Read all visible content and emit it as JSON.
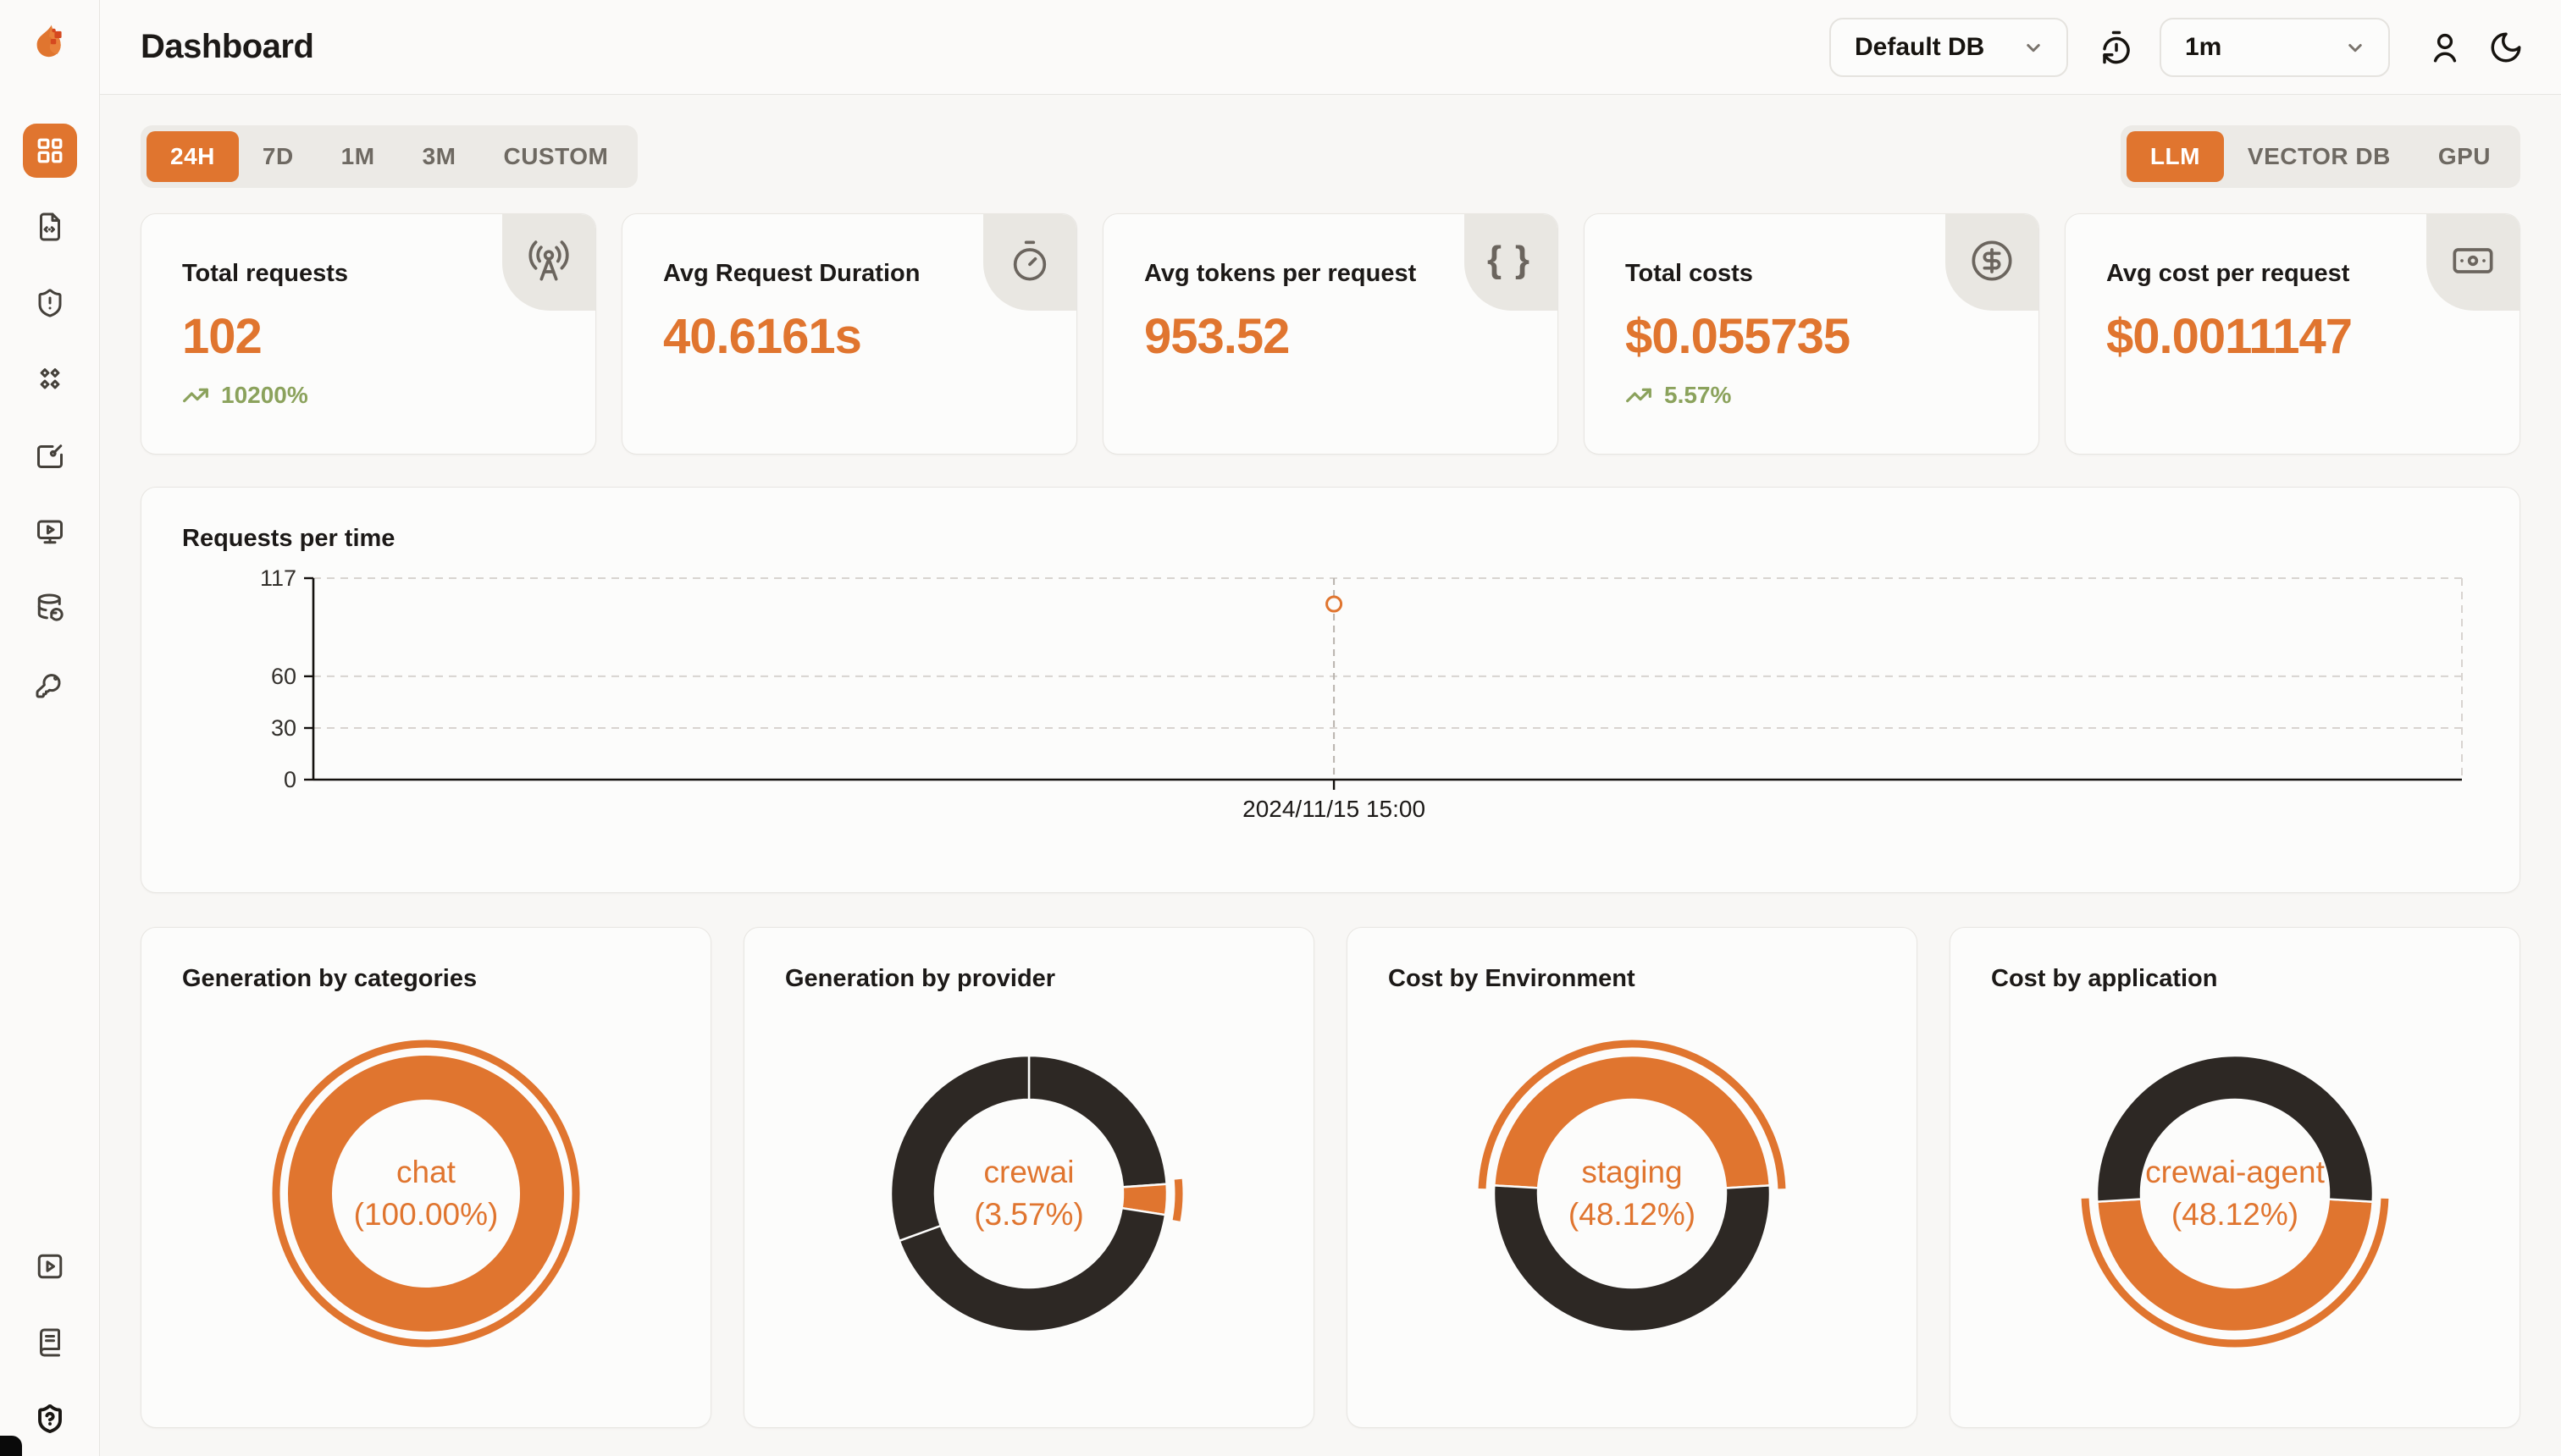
{
  "app": {
    "title": "Dashboard"
  },
  "colors": {
    "accent": "#e0752f",
    "dark": "#2d2824",
    "green": "#8ba25c"
  },
  "header": {
    "db_select": {
      "value": "Default DB"
    },
    "interval_select": {
      "value": "1m"
    }
  },
  "time_range_tabs": [
    "24H",
    "7D",
    "1M",
    "3M",
    "CUSTOM"
  ],
  "time_range_active": "24H",
  "resource_tabs": [
    "LLM",
    "VECTOR DB",
    "GPU"
  ],
  "resource_active": "LLM",
  "stat_cards": [
    {
      "title": "Total requests",
      "value": "102",
      "trend": "10200%",
      "icon": "radio-tower"
    },
    {
      "title": "Avg Request Duration",
      "value": "40.6161s",
      "trend": "",
      "icon": "timer"
    },
    {
      "title": "Avg tokens per request",
      "value": "953.52",
      "trend": "",
      "icon": "braces"
    },
    {
      "title": "Total costs",
      "value": "$0.055735",
      "trend": "5.57%",
      "icon": "circle-dollar-sign"
    },
    {
      "title": "Avg cost per request",
      "value": "$0.0011147",
      "trend": "",
      "icon": "banknote"
    }
  ],
  "chart_data": [
    {
      "type": "line",
      "title": "Requests per time",
      "x": [
        "2024/11/15 15:00"
      ],
      "values": [
        102
      ],
      "yticks": [
        117,
        60,
        30,
        0
      ],
      "ylim": [
        0,
        117
      ],
      "grid": "horizontal-dashed",
      "legend": false,
      "color": "#e0752f"
    },
    {
      "type": "donut",
      "title": "Generation by categories",
      "center": {
        "label": "chat",
        "pct": "(100.00%)"
      },
      "start_angle": 0,
      "segments": [
        {
          "name": "chat",
          "pct": 100,
          "color": "#e0752f",
          "emphasized": true
        }
      ]
    },
    {
      "type": "donut",
      "title": "Generation by provider",
      "center": {
        "label": "crewai",
        "pct": "(3.57%)"
      },
      "start_angle": 0,
      "segments": [
        {
          "pct": 23.9,
          "color": "#2d2824"
        },
        {
          "name": "crewai",
          "pct": 3.57,
          "color": "#e0752f",
          "emphasized": true
        },
        {
          "pct": 41.97,
          "color": "#2d2824"
        },
        {
          "pct": 30.56,
          "color": "#2d2824"
        }
      ]
    },
    {
      "type": "donut",
      "title": "Cost by Environment",
      "center": {
        "label": "staging",
        "pct": "(48.12%)"
      },
      "start_angle": 273.4,
      "segments": [
        {
          "name": "staging",
          "pct": 48.12,
          "color": "#e0752f",
          "emphasized": true
        },
        {
          "pct": 51.88,
          "color": "#2d2824"
        }
      ]
    },
    {
      "type": "donut",
      "title": "Cost by application",
      "center": {
        "label": "crewai-agent",
        "pct": "(48.12%)"
      },
      "start_angle": 93.4,
      "segments": [
        {
          "name": "crewai-agent",
          "pct": 48.12,
          "color": "#e0752f",
          "emphasized": true
        },
        {
          "pct": 51.88,
          "color": "#2d2824"
        }
      ]
    }
  ]
}
